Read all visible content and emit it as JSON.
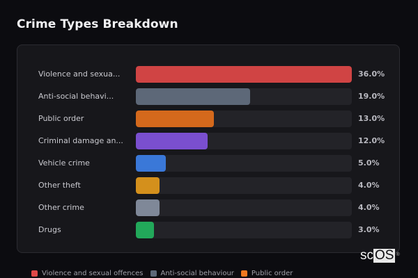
{
  "title": "Crime Types Breakdown",
  "chart_data": {
    "type": "bar",
    "orientation": "horizontal",
    "title": "Crime Types Breakdown",
    "categories": [
      "Violence and sexual offences",
      "Anti-social behaviour",
      "Public order",
      "Criminal damage and arson",
      "Vehicle crime",
      "Other theft",
      "Other crime",
      "Drugs"
    ],
    "display_labels": [
      "Violence and sexua...",
      "Anti-social behavi...",
      "Public order",
      "Criminal damage an...",
      "Vehicle crime",
      "Other theft",
      "Other crime",
      "Drugs"
    ],
    "values": [
      36.0,
      19.0,
      13.0,
      12.0,
      5.0,
      4.0,
      4.0,
      3.0
    ],
    "value_labels": [
      "36.0%",
      "19.0%",
      "13.0%",
      "12.0%",
      "5.0%",
      "4.0%",
      "4.0%",
      "3.0%"
    ],
    "colors": [
      "#d04444",
      "#5d6878",
      "#d4691c",
      "#7a4fcf",
      "#3a78d8",
      "#d4901c",
      "#7f8898",
      "#22a85a"
    ],
    "xlabel": "",
    "ylabel": "",
    "xlim": [
      0,
      36
    ],
    "grid": false,
    "legend_position": "bottom"
  },
  "legend": [
    {
      "label": "Violence and sexual offences",
      "color": "#e04848"
    },
    {
      "label": "Anti-social behaviour",
      "color": "#5d6878"
    },
    {
      "label": "Public order",
      "color": "#f07820"
    }
  ],
  "logo": {
    "prefix": "sc",
    "suffix": "OS",
    "mark": "®"
  }
}
